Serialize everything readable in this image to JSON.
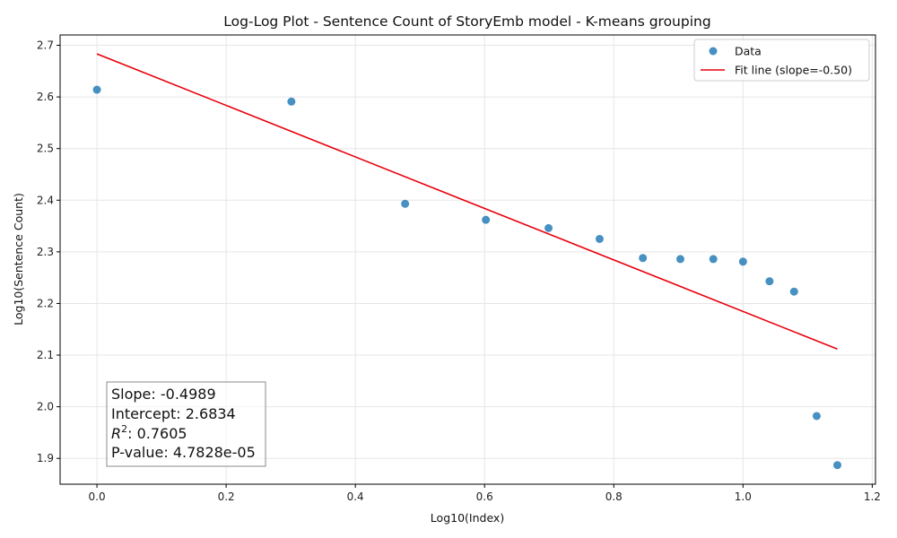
{
  "chart_data": {
    "type": "scatter",
    "title": "Log-Log Plot - Sentence Count of StoryEmb model - K-means grouping",
    "xlabel": "Log10(Index)",
    "ylabel": "Log10(Sentence Count)",
    "xlim": [
      -0.057,
      1.205
    ],
    "ylim": [
      1.85,
      2.72
    ],
    "xticks": [
      0.0,
      0.2,
      0.4,
      0.6,
      0.8,
      1.0,
      1.2
    ],
    "xtick_labels": [
      "0.0",
      "0.2",
      "0.4",
      "0.6",
      "0.8",
      "1.0",
      "1.2"
    ],
    "yticks": [
      1.9,
      2.0,
      2.1,
      2.2,
      2.3,
      2.4,
      2.5,
      2.6,
      2.7
    ],
    "ytick_labels": [
      "1.9",
      "2.0",
      "2.1",
      "2.2",
      "2.3",
      "2.4",
      "2.5",
      "2.6",
      "2.7"
    ],
    "grid": true,
    "legend_position": "top-right",
    "series": [
      {
        "name": "Data",
        "kind": "scatter",
        "color": "#1f77b4",
        "x": [
          0.0,
          0.301,
          0.477,
          0.602,
          0.699,
          0.778,
          0.845,
          0.903,
          0.954,
          1.0,
          1.041,
          1.079,
          1.114,
          1.146
        ],
        "y": [
          2.614,
          2.591,
          2.393,
          2.362,
          2.346,
          2.325,
          2.288,
          2.286,
          2.286,
          2.281,
          2.243,
          2.223,
          1.982,
          1.887
        ]
      },
      {
        "name": "Fit line (slope=-0.50)",
        "kind": "line",
        "color": "#e8000b",
        "x": [
          0.0,
          1.146
        ],
        "y": [
          2.6834,
          2.1117
        ]
      }
    ],
    "annotation": {
      "slope_text": "Slope: -0.4989",
      "intercept_text": "Intercept: 2.6834",
      "r2_label": "R",
      "r2_sup": "2",
      "r2_value": ": 0.7605",
      "pvalue_text": "P-value: 4.7828e-05"
    }
  }
}
